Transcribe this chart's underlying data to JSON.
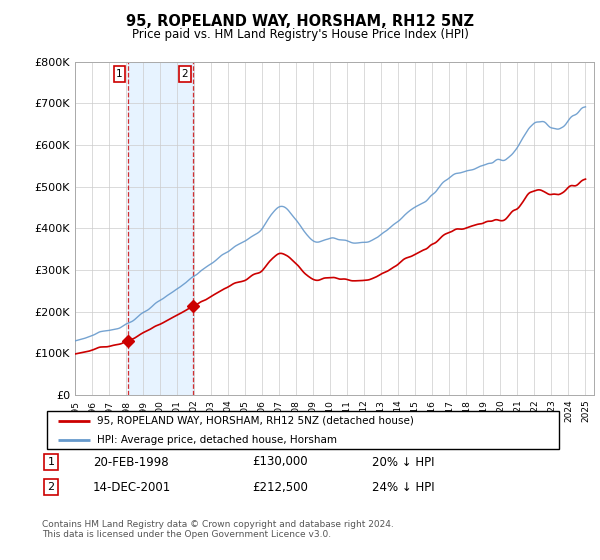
{
  "title": "95, ROPELAND WAY, HORSHAM, RH12 5NZ",
  "subtitle": "Price paid vs. HM Land Registry's House Price Index (HPI)",
  "purchase1_label": "20-FEB-1998",
  "purchase1_price": 130000,
  "purchase1_year": 1998.12,
  "purchase1_hpi_diff": "20% ↓ HPI",
  "purchase2_label": "14-DEC-2001",
  "purchase2_price": 212500,
  "purchase2_year": 2001.95,
  "purchase2_hpi_diff": "24% ↓ HPI",
  "legend_label1": "95, ROPELAND WAY, HORSHAM, RH12 5NZ (detached house)",
  "legend_label2": "HPI: Average price, detached house, Horsham",
  "footer": "Contains HM Land Registry data © Crown copyright and database right 2024.\nThis data is licensed under the Open Government Licence v3.0.",
  "line1_color": "#cc0000",
  "line2_color": "#6699cc",
  "shade_color": "#ddeeff",
  "ylim": [
    0,
    800000
  ],
  "yticks": [
    0,
    100000,
    200000,
    300000,
    400000,
    500000,
    600000,
    700000,
    800000
  ],
  "xlim_start": 1995,
  "xlim_end": 2025.5
}
